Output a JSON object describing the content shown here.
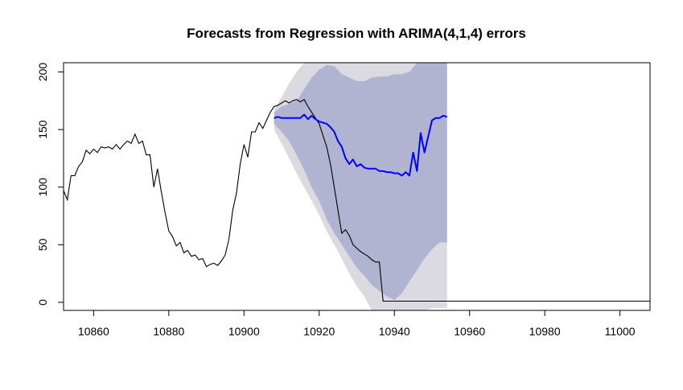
{
  "chart_data": {
    "type": "line",
    "title": "Forecasts from Regression with ARIMA(4,1,4) errors",
    "xlabel": "",
    "ylabel": "",
    "xlim": [
      10852,
      11008
    ],
    "ylim": [
      -7,
      208
    ],
    "x_ticks": [
      10860,
      10880,
      10900,
      10920,
      10940,
      10960,
      10980,
      11000
    ],
    "y_ticks": [
      0,
      50,
      100,
      150,
      200
    ],
    "grid": false,
    "legend": "none",
    "colors": {
      "actual": "#000000",
      "forecast": "#0000ff",
      "interval_80": "#b0b4d0",
      "interval_95": "#dadae0"
    },
    "series": [
      {
        "role": "actual",
        "x": [
          10852,
          10853,
          10854,
          10855,
          10856,
          10857,
          10858,
          10859,
          10860,
          10861,
          10862,
          10863,
          10864,
          10865,
          10866,
          10867,
          10868,
          10869,
          10870,
          10871,
          10872,
          10873,
          10874,
          10875,
          10876,
          10877,
          10878,
          10879,
          10880,
          10881,
          10882,
          10883,
          10884,
          10885,
          10886,
          10887,
          10888,
          10889,
          10890,
          10891,
          10892,
          10893,
          10894,
          10895,
          10896,
          10897,
          10898,
          10899,
          10900,
          10901,
          10902,
          10903,
          10904,
          10905,
          10906,
          10907,
          10908,
          10909,
          10910,
          10911,
          10912,
          10913,
          10914,
          10915,
          10916,
          10917,
          10918,
          10919,
          10920,
          10921,
          10922,
          10923,
          10924,
          10925,
          10926,
          10927,
          10928,
          10929,
          10930,
          10931,
          10932,
          10933,
          10934,
          10935,
          10936,
          10937,
          10938,
          11008
        ],
        "y": [
          97,
          89,
          110,
          110,
          118,
          122,
          132,
          129,
          133,
          130,
          135,
          134,
          135,
          133,
          137,
          133,
          137,
          140,
          138,
          146,
          138,
          140,
          128,
          128,
          100,
          116,
          96,
          78,
          62,
          57,
          49,
          52,
          43,
          45,
          40,
          41,
          37,
          38,
          31,
          33,
          34,
          32,
          36,
          41,
          55,
          80,
          95,
          120,
          137,
          126,
          148,
          148,
          156,
          151,
          158,
          165,
          170,
          171,
          173,
          175,
          173,
          175,
          176,
          174,
          176,
          170,
          165,
          160,
          155,
          145,
          135,
          120,
          100,
          80,
          60,
          63,
          58,
          50,
          47,
          44,
          42,
          40,
          37,
          35,
          35,
          1,
          1,
          1
        ]
      },
      {
        "role": "forecast",
        "x": [
          10908,
          10909,
          10910,
          10911,
          10912,
          10913,
          10914,
          10915,
          10916,
          10917,
          10918,
          10919,
          10920,
          10921,
          10922,
          10923,
          10924,
          10925,
          10926,
          10927,
          10928,
          10929,
          10930,
          10931,
          10932,
          10933,
          10934,
          10935,
          10936,
          10937,
          10938,
          10939,
          10940,
          10941,
          10942,
          10943,
          10944,
          10945,
          10946,
          10947,
          10948,
          10949,
          10950,
          10951,
          10952,
          10953,
          10954
        ],
        "y": [
          160,
          161,
          160,
          160,
          160,
          160,
          160,
          160,
          163,
          159,
          162,
          159,
          157,
          156,
          155,
          152,
          148,
          140,
          135,
          125,
          120,
          124,
          118,
          120,
          117,
          116,
          116,
          116,
          114,
          114,
          113,
          113,
          112,
          112,
          110,
          113,
          110,
          130,
          114,
          147,
          130,
          144,
          158,
          160,
          160,
          162,
          161
        ]
      },
      {
        "role": "interval_80",
        "x": [
          10908,
          10910,
          10912,
          10914,
          10916,
          10918,
          10920,
          10922,
          10924,
          10926,
          10928,
          10930,
          10932,
          10934,
          10936,
          10938,
          10940,
          10942,
          10944,
          10946,
          10948,
          10950,
          10952,
          10954
        ],
        "upper": [
          165,
          170,
          172,
          175,
          185,
          195,
          202,
          206,
          205,
          198,
          195,
          192,
          192,
          195,
          196,
          196,
          198,
          198,
          200,
          208,
          208,
          208,
          208,
          208
        ],
        "lower": [
          155,
          148,
          140,
          128,
          115,
          100,
          88,
          72,
          60,
          50,
          40,
          30,
          23,
          15,
          10,
          5,
          2,
          8,
          18,
          28,
          38,
          46,
          52,
          52
        ]
      },
      {
        "role": "interval_95",
        "x": [
          10908,
          10910,
          10912,
          10914,
          10916,
          10918,
          10920,
          10922,
          10924,
          10926,
          10928,
          10930,
          10932,
          10934,
          10936,
          10938,
          10940,
          10942,
          10944,
          10946,
          10948,
          10950,
          10952,
          10954
        ],
        "upper": [
          168,
          178,
          190,
          200,
          208,
          208,
          208,
          208,
          208,
          208,
          208,
          208,
          208,
          208,
          208,
          208,
          208,
          208,
          208,
          208,
          208,
          208,
          208,
          208
        ],
        "lower": [
          150,
          138,
          125,
          112,
          100,
          88,
          76,
          62,
          50,
          38,
          25,
          14,
          5,
          -7,
          -7,
          -7,
          -7,
          -7,
          -7,
          -7,
          -7,
          -5,
          -5,
          -5
        ]
      }
    ]
  }
}
